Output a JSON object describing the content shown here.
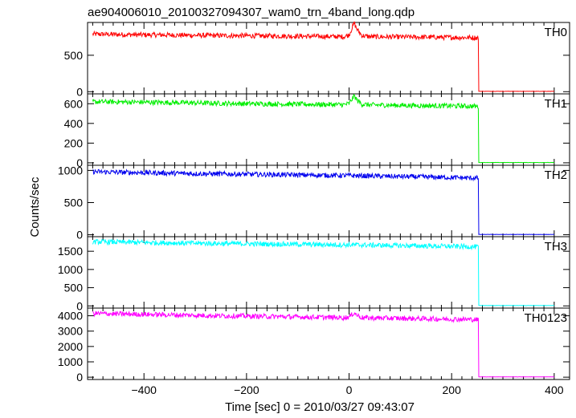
{
  "chart_data": {
    "type": "line",
    "title": "ae904006010_20100327094307_wam0_trn_4band_long.qdp",
    "xlabel": "Time [sec] 0 = 2010/03/27 09:43:07",
    "ylabel": "Counts/sec",
    "xlim": [
      -510,
      430
    ],
    "x_ticks": [
      -400,
      -200,
      0,
      200,
      400
    ],
    "grid": false,
    "legend": "none",
    "panels": [
      {
        "name": "TH0",
        "color": "#ff0000",
        "ylim": [
          -30,
          950
        ],
        "y_ticks": [
          0,
          500
        ],
        "series": {
          "x": [
            -500,
            -450,
            -400,
            -350,
            -300,
            -250,
            -200,
            -150,
            -100,
            -50,
            -10,
            0,
            5,
            10,
            15,
            25,
            40,
            80,
            120,
            160,
            200,
            240,
            252,
            253,
            255,
            300,
            350,
            400
          ],
          "y": [
            790,
            785,
            780,
            778,
            773,
            770,
            768,
            765,
            762,
            758,
            755,
            780,
            860,
            940,
            860,
            770,
            755,
            752,
            750,
            748,
            745,
            742,
            740,
            5,
            5,
            5,
            5,
            5
          ]
        }
      },
      {
        "name": "TH1",
        "color": "#00ee00",
        "ylim": [
          -25,
          700
        ],
        "y_ticks": [
          0,
          200,
          400,
          600
        ],
        "series": {
          "x": [
            -500,
            -450,
            -400,
            -350,
            -300,
            -250,
            -200,
            -150,
            -100,
            -50,
            -10,
            0,
            5,
            10,
            15,
            25,
            40,
            80,
            120,
            160,
            200,
            240,
            252,
            253,
            255,
            300,
            350,
            400
          ],
          "y": [
            620,
            618,
            615,
            612,
            608,
            604,
            600,
            598,
            595,
            592,
            590,
            600,
            640,
            680,
            640,
            595,
            588,
            585,
            582,
            580,
            578,
            575,
            572,
            3,
            3,
            3,
            3,
            3
          ]
        }
      },
      {
        "name": "TH2",
        "color": "#0000ee",
        "ylim": [
          -30,
          1080
        ],
        "y_ticks": [
          0,
          500,
          1000
        ],
        "series": {
          "x": [
            -500,
            -450,
            -400,
            -350,
            -300,
            -250,
            -200,
            -150,
            -100,
            -50,
            0,
            50,
            100,
            150,
            200,
            240,
            252,
            253,
            255,
            300,
            350,
            400
          ],
          "y": [
            980,
            972,
            965,
            958,
            950,
            945,
            940,
            935,
            930,
            925,
            920,
            912,
            905,
            898,
            890,
            882,
            880,
            5,
            5,
            5,
            5,
            5
          ]
        }
      },
      {
        "name": "TH3",
        "color": "#00ffff",
        "ylim": [
          -60,
          1900
        ],
        "y_ticks": [
          0,
          500,
          1000,
          1500
        ],
        "series": {
          "x": [
            -500,
            -450,
            -400,
            -350,
            -300,
            -250,
            -200,
            -150,
            -100,
            -50,
            0,
            50,
            100,
            150,
            200,
            240,
            252,
            253,
            255,
            300,
            350,
            400
          ],
          "y": [
            1760,
            1750,
            1740,
            1730,
            1720,
            1712,
            1705,
            1698,
            1690,
            1682,
            1675,
            1665,
            1655,
            1645,
            1635,
            1625,
            1620,
            10,
            10,
            10,
            10,
            10
          ]
        }
      },
      {
        "name": "TH0123",
        "color": "#ff00ff",
        "ylim": [
          -150,
          4500
        ],
        "y_ticks": [
          0,
          1000,
          2000,
          3000,
          4000
        ],
        "series": {
          "x": [
            -500,
            -450,
            -400,
            -350,
            -300,
            -250,
            -200,
            -150,
            -100,
            -50,
            -10,
            0,
            5,
            10,
            15,
            25,
            40,
            80,
            120,
            160,
            200,
            240,
            252,
            253,
            255,
            300,
            350,
            400
          ],
          "y": [
            4150,
            4120,
            4090,
            4060,
            4030,
            4000,
            3975,
            3950,
            3925,
            3900,
            3880,
            3920,
            4050,
            4200,
            4050,
            3880,
            3860,
            3840,
            3820,
            3800,
            3780,
            3760,
            3740,
            20,
            20,
            20,
            20,
            20
          ]
        }
      }
    ]
  }
}
